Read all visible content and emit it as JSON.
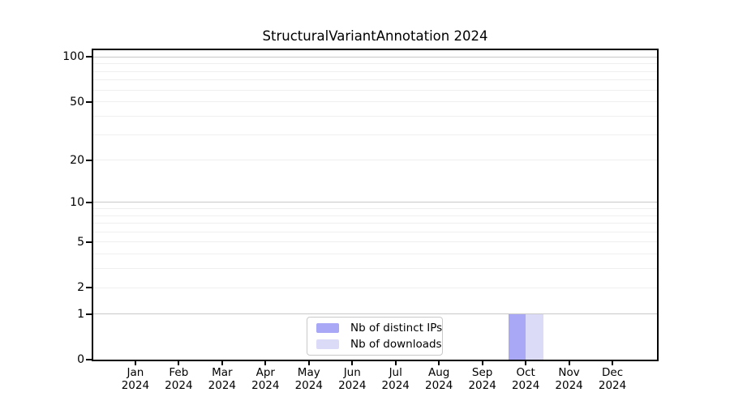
{
  "title": "StructuralVariantAnnotation 2024",
  "chart_data": {
    "type": "bar",
    "title": "StructuralVariantAnnotation 2024",
    "xlabel": "",
    "ylabel": "",
    "scale": "log1p",
    "categories": [
      "Jan",
      "Feb",
      "Mar",
      "Apr",
      "May",
      "Jun",
      "Jul",
      "Aug",
      "Sep",
      "Oct",
      "Nov",
      "Dec"
    ],
    "year_label": "2024",
    "series": [
      {
        "name": "Nb of distinct IPs",
        "color": "#a8a8f7",
        "values": [
          0,
          0,
          0,
          0,
          0,
          0,
          0,
          0,
          0,
          1,
          0,
          0
        ]
      },
      {
        "name": "Nb of downloads",
        "color": "#dbdbf8",
        "values": [
          0,
          0,
          0,
          0,
          0,
          0,
          0,
          0,
          0,
          1,
          0,
          0
        ]
      }
    ],
    "y_tick_values": [
      0,
      1,
      2,
      5,
      10,
      20,
      50,
      100
    ],
    "y_decade_gridlines": [
      1,
      10,
      100
    ],
    "y_minor_gridlines": [
      2,
      3,
      4,
      5,
      6,
      7,
      8,
      9,
      20,
      30,
      40,
      50,
      60,
      70,
      80,
      90
    ],
    "ylim": [
      0,
      113
    ],
    "grid": true,
    "legend_position": "bottom-center"
  },
  "colors": {
    "bar_distinct_ips": "#a8a8f7",
    "bar_downloads": "#dbdbf8",
    "grid_major": "#c8c8c8",
    "grid_minor": "#efefef",
    "axis": "#000000",
    "legend_border": "#c9c9c9",
    "background": "#ffffff"
  }
}
